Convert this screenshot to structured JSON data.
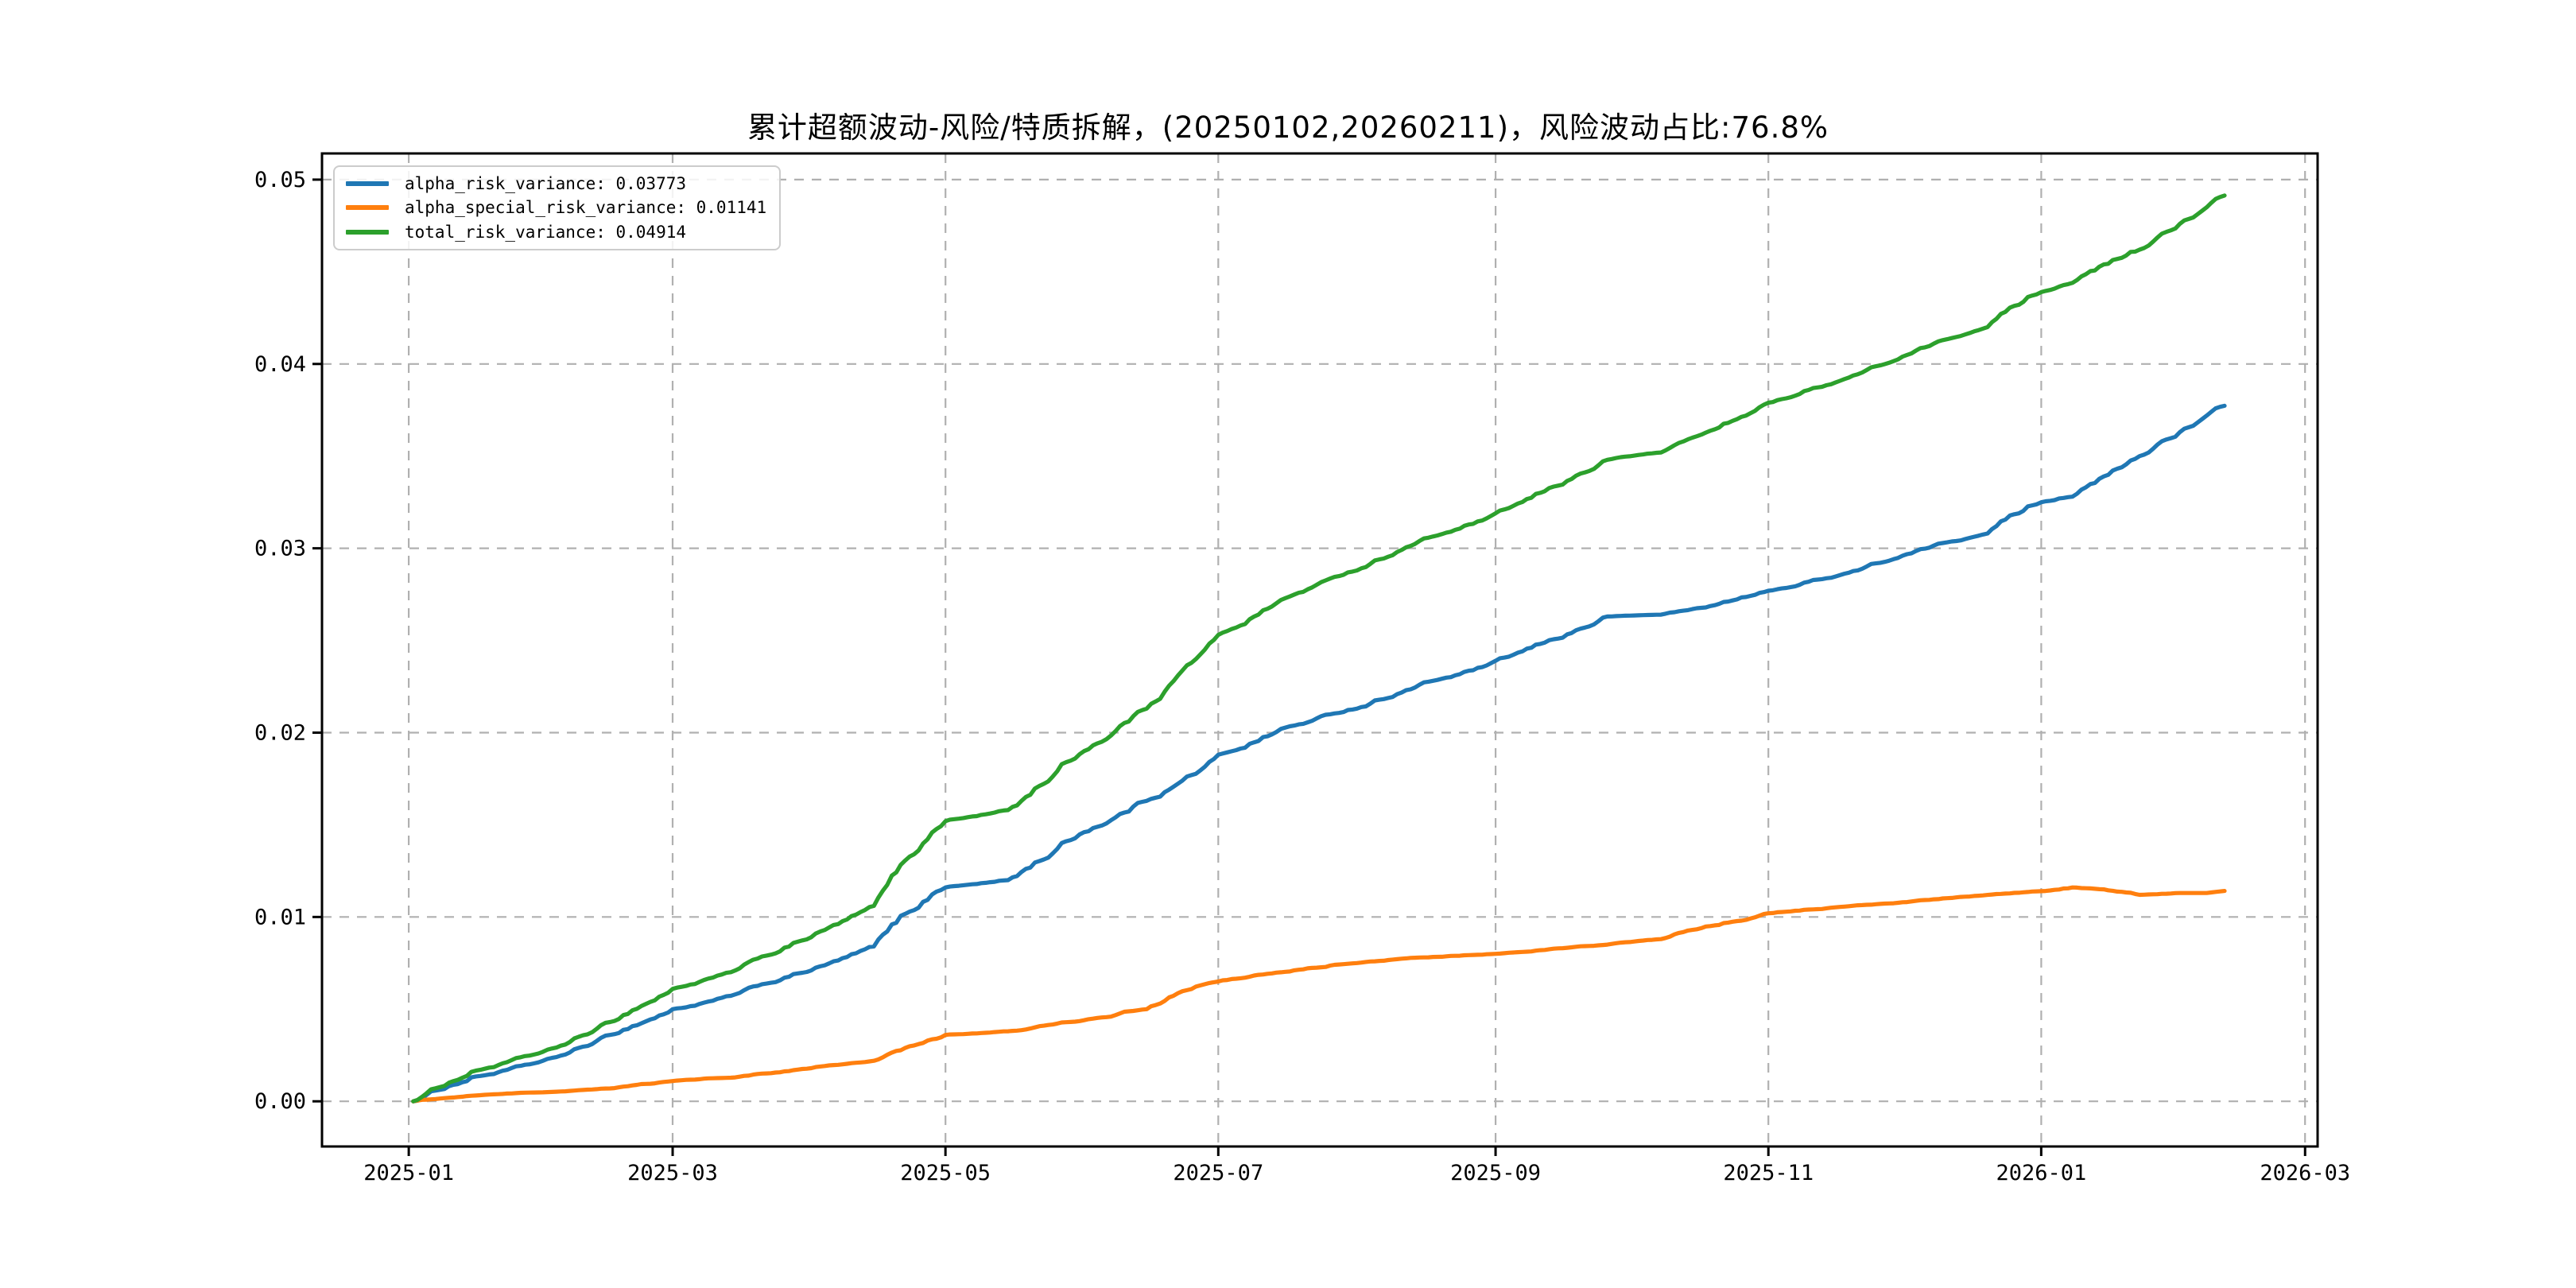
{
  "title": "累计超额波动-风险/特质拆解，(20250102,20260211)，风险波动占比:76.8%",
  "meta": {
    "period_start": "20250102",
    "period_end": "20260211",
    "risk_volatility_ratio": "76.8%"
  },
  "legend": {
    "position": "upper-left",
    "items": [
      {
        "label": "alpha_risk_variance: 0.03773",
        "color": "#1f77b4"
      },
      {
        "label": "alpha_special_risk_variance: 0.01141",
        "color": "#ff7f0e"
      },
      {
        "label": "total_risk_variance: 0.04914",
        "color": "#2ca02c"
      }
    ]
  },
  "chart_data": {
    "type": "line",
    "title": "累计超额波动-风险/特质拆解，(20250102,20260211)，风险波动占比:76.8%",
    "xlabel": "",
    "ylabel": "",
    "grid": true,
    "grid_style": "dashed",
    "legend_position": "upper left",
    "x_axis": {
      "tick_labels": [
        "2025-01",
        "2025-03",
        "2025-05",
        "2025-07",
        "2025-09",
        "2025-11",
        "2026-01",
        "2026-03"
      ],
      "tick_dates": [
        "2025-01-01",
        "2025-03-01",
        "2025-05-01",
        "2025-07-01",
        "2025-09-01",
        "2025-11-01",
        "2026-01-01",
        "2026-03-01"
      ],
      "range_days_from_2025_01_01": [
        -19.4,
        426.8
      ]
    },
    "y_axis": {
      "tick_labels": [
        "0.00",
        "0.01",
        "0.02",
        "0.03",
        "0.04",
        "0.05"
      ],
      "tick_values": [
        0.0,
        0.01,
        0.02,
        0.03,
        0.04,
        0.05
      ],
      "range": [
        -0.00245,
        0.05142
      ]
    },
    "series": [
      {
        "key": "alpha_risk_variance",
        "name": "alpha_risk_variance",
        "color": "#1f77b4",
        "final_value": 0.03773
      },
      {
        "key": "alpha_special_risk_variance",
        "name": "alpha_special_risk_variance",
        "color": "#ff7f0e",
        "final_value": 0.01141
      },
      {
        "key": "total_risk_variance",
        "name": "total_risk_variance",
        "color": "#2ca02c",
        "final_value": 0.04914,
        "derived": "sum_of_other_two"
      }
    ],
    "anchors": {
      "dates": [
        "2025-01-02",
        "2025-01-15",
        "2025-02-01",
        "2025-02-15",
        "2025-03-01",
        "2025-03-15",
        "2025-04-01",
        "2025-04-15",
        "2025-05-01",
        "2025-05-15",
        "2025-06-01",
        "2025-06-15",
        "2025-07-01",
        "2025-07-15",
        "2025-08-01",
        "2025-08-15",
        "2025-09-01",
        "2025-09-15",
        "2025-09-26",
        "2025-10-08",
        "2025-10-15",
        "2025-11-01",
        "2025-11-15",
        "2025-12-01",
        "2025-12-15",
        "2026-01-01",
        "2026-01-08",
        "2026-01-15",
        "2026-01-23",
        "2026-02-01",
        "2026-02-07",
        "2026-02-11"
      ],
      "alpha_risk_variance": [
        0.0,
        0.0013,
        0.0023,
        0.0036,
        0.005,
        0.0058,
        0.0071,
        0.0084,
        0.0116,
        0.012,
        0.0146,
        0.0163,
        0.0188,
        0.0202,
        0.0213,
        0.0226,
        0.0239,
        0.0251,
        0.0263,
        0.0264,
        0.0267,
        0.0277,
        0.0284,
        0.0296,
        0.0305,
        0.0325,
        0.0328,
        0.0339,
        0.035,
        0.0363,
        0.0372,
        0.03773
      ],
      "alpha_special_risk_variance": [
        0.0,
        0.0003,
        0.0005,
        0.0007,
        0.0011,
        0.0013,
        0.0018,
        0.0022,
        0.0036,
        0.0038,
        0.0044,
        0.005,
        0.0065,
        0.007,
        0.0075,
        0.0078,
        0.008,
        0.0083,
        0.0085,
        0.0088,
        0.0093,
        0.0102,
        0.0105,
        0.0108,
        0.0111,
        0.0114,
        0.0116,
        0.0115,
        0.0112,
        0.0113,
        0.0113,
        0.01141
      ]
    },
    "style": {
      "line_width": 5.2,
      "spine_color": "#000000",
      "grid_color": "#b0b0b0",
      "background": "#ffffff"
    }
  }
}
